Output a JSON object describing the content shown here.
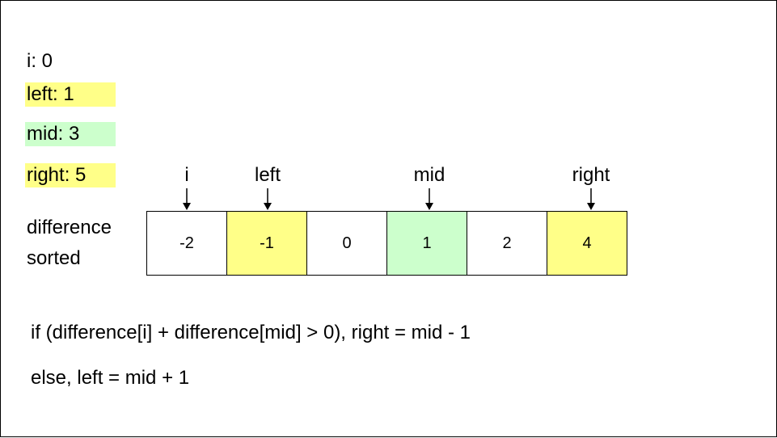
{
  "colors": {
    "left_fill": "#ffff88",
    "mid_fill": "#ccffcc",
    "right_fill": "#ffff88",
    "plain_fill": "#ffffff"
  },
  "vars": {
    "i": "i: 0",
    "left": "left: 1",
    "mid": "mid: 3",
    "right": "right: 5"
  },
  "array_label": {
    "line1": "difference",
    "line2": "sorted"
  },
  "pointers": {
    "i": "i",
    "left": "left",
    "mid": "mid",
    "right": "right"
  },
  "cells": [
    "-2",
    "-1",
    "0",
    "1",
    "2",
    "4"
  ],
  "rules": {
    "if_line": "if (difference[i] + difference[mid] > 0), right = mid - 1",
    "else_line": "else, left = mid + 1"
  }
}
